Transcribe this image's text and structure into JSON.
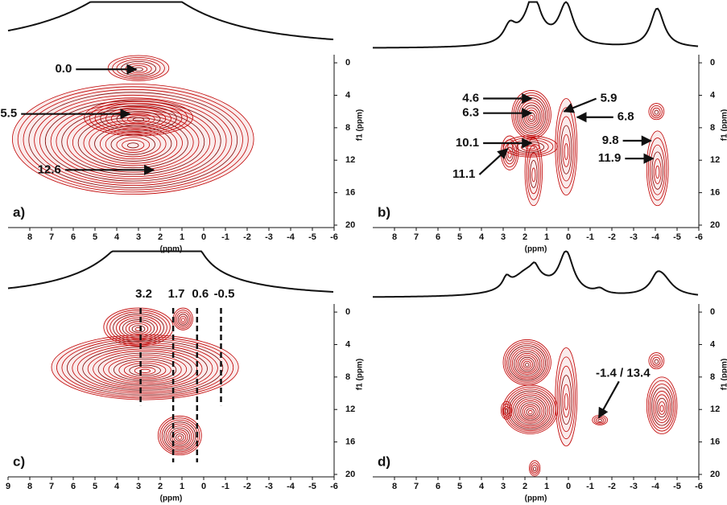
{
  "chart_data": [
    {
      "type": "contour",
      "panel_label": "a)",
      "x_label": "(ppm)",
      "y_label": "f1 (ppm)",
      "xlim": [
        9,
        -6
      ],
      "xticks": [
        8,
        7,
        6,
        5,
        4,
        3,
        2,
        1,
        0,
        -1,
        -2,
        -3,
        -4,
        -5,
        -6
      ],
      "ylim": [
        -1,
        20.3
      ],
      "yticks": [
        0,
        4,
        8,
        12,
        16,
        20
      ],
      "color": "#c00000",
      "peaks": [
        {
          "x": [
            4.4,
            1.6
          ],
          "y": [
            -0.9,
            2.2
          ]
        },
        {
          "x": [
            8.8,
            -2.3
          ],
          "y": [
            2.6,
            16.2
          ]
        },
        {
          "x": [
            5.5,
            0.5
          ],
          "y": [
            4.5,
            9
          ]
        }
      ],
      "annotations": [
        {
          "text": "0.0",
          "x": 3.1,
          "y": 0.8
        },
        {
          "text": "5.5",
          "x": 3.4,
          "y": 6.3
        },
        {
          "text": "12.6",
          "x": 2.3,
          "y": 13.2
        }
      ]
    },
    {
      "type": "contour",
      "panel_label": "b)",
      "x_label": "(ppm)",
      "y_label": "f1 (ppm)",
      "xlim": [
        9,
        -6
      ],
      "xticks": [
        8,
        7,
        6,
        5,
        4,
        3,
        2,
        1,
        0,
        -1,
        -2,
        -3,
        -4,
        -5,
        -6
      ],
      "ylim": [
        -1,
        20.3
      ],
      "yticks": [
        0,
        4,
        8,
        12,
        16,
        20
      ],
      "color": "#c00000",
      "peaks": [
        {
          "x": [
            2.6,
            0.8
          ],
          "y": [
            3.4,
            9.4
          ]
        },
        {
          "x": [
            2.0,
            1.2
          ],
          "y": [
            9.2,
            17.6
          ]
        },
        {
          "x": [
            3.0,
            0.5
          ],
          "y": [
            9.0,
            11.6
          ]
        },
        {
          "x": [
            0.6,
            -0.4
          ],
          "y": [
            4.4,
            16.3
          ]
        },
        {
          "x": [
            3.1,
            2.3
          ],
          "y": [
            9.0,
            13.2
          ]
        },
        {
          "x": [
            -3.7,
            -4.4
          ],
          "y": [
            5.0,
            7.0
          ]
        },
        {
          "x": [
            -3.6,
            -4.6
          ],
          "y": [
            8.4,
            17.6
          ]
        }
      ],
      "annotations": [
        {
          "text": "4.6",
          "x": 1.7,
          "y": 4.4
        },
        {
          "text": "6.3",
          "x": 1.7,
          "y": 6.2
        },
        {
          "text": "10.1",
          "x": 1.7,
          "y": 9.9
        },
        {
          "text": "11.1",
          "x": 2.8,
          "y": 10.6
        },
        {
          "text": "5.9",
          "x": 0.2,
          "y": 6.0
        },
        {
          "text": "6.8",
          "x": -0.4,
          "y": 6.7
        },
        {
          "text": "9.8",
          "x": -3.8,
          "y": 9.6
        },
        {
          "text": "11.9",
          "x": -3.9,
          "y": 11.8
        }
      ]
    },
    {
      "type": "contour",
      "panel_label": "c)",
      "x_label": "(ppm)",
      "y_label": "f1 (ppm)",
      "xlim": [
        9,
        -6
      ],
      "xticks": [
        9,
        8,
        7,
        6,
        5,
        4,
        3,
        2,
        1,
        0,
        -1,
        -2,
        -3,
        -4,
        -5,
        -6
      ],
      "ylim": [
        -1,
        20.3
      ],
      "yticks": [
        0,
        4,
        8,
        12,
        16,
        20
      ],
      "color": "#c00000",
      "peaks": [
        {
          "x": [
            4.6,
            1.4
          ],
          "y": [
            -0.5,
            4.2
          ]
        },
        {
          "x": [
            7.0,
            -1.6
          ],
          "y": [
            2.8,
            10.8
          ]
        },
        {
          "x": [
            2.1,
            0.1
          ],
          "y": [
            12.8,
            17.6
          ]
        },
        {
          "x": [
            1.4,
            0.5
          ],
          "y": [
            -0.5,
            2.2
          ]
        }
      ],
      "guides": [
        3.2,
        1.7,
        0.6,
        -0.5
      ],
      "annotations": []
    },
    {
      "type": "contour",
      "panel_label": "d)",
      "x_label": "(ppm)",
      "y_label": "f1 (ppm)",
      "xlim": [
        9,
        -6
      ],
      "xticks": [
        8,
        7,
        6,
        5,
        4,
        3,
        2,
        1,
        0,
        -1,
        -2,
        -3,
        -4,
        -5,
        -6
      ],
      "ylim": [
        -1,
        20.3
      ],
      "yticks": [
        0,
        4,
        8,
        12,
        16,
        20
      ],
      "color": "#c00000",
      "peaks": [
        {
          "x": [
            3.0,
            0.8
          ],
          "y": [
            3.4,
            9.0
          ]
        },
        {
          "x": [
            3.0,
            0.5
          ],
          "y": [
            9.0,
            15.0
          ]
        },
        {
          "x": [
            0.6,
            -0.4
          ],
          "y": [
            4.4,
            16.5
          ]
        },
        {
          "x": [
            1.8,
            1.3
          ],
          "y": [
            18.3,
            20.2
          ]
        },
        {
          "x": [
            -1.1,
            -1.8
          ],
          "y": [
            12.7,
            13.9
          ]
        },
        {
          "x": [
            -3.7,
            -4.4
          ],
          "y": [
            5.0,
            7.0
          ]
        },
        {
          "x": [
            -3.6,
            -5.0
          ],
          "y": [
            8.0,
            15.0
          ]
        },
        {
          "x": [
            3.1,
            2.6
          ],
          "y": [
            11.0,
            13.2
          ]
        }
      ],
      "annotations": [
        {
          "text": "-1.4 / 13.4",
          "x": -1.4,
          "y": 13.0
        }
      ]
    }
  ]
}
